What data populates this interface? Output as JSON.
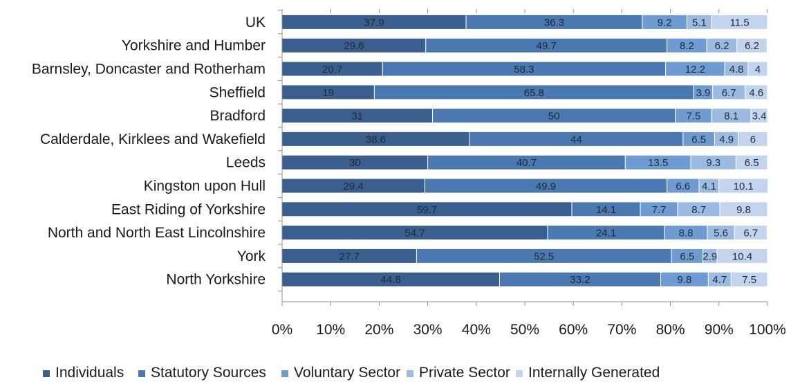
{
  "chart_data": {
    "type": "bar",
    "orientation": "horizontal",
    "stacked": true,
    "categories": [
      "UK",
      "Yorkshire and Humber",
      "Barnsley, Doncaster and Rotherham",
      "Sheffield",
      "Bradford",
      "Calderdale, Kirklees and Wakefield",
      "Leeds",
      "Kingston upon Hull",
      "East Riding of Yorkshire",
      "North and North East Lincolnshire",
      "York",
      "North Yorkshire"
    ],
    "series": [
      {
        "name": "Individuals",
        "color": "#3a5f8e",
        "values": [
          37.9,
          29.6,
          20.7,
          19,
          31,
          38.6,
          30,
          29.4,
          59.7,
          54.7,
          27.7,
          44.8
        ]
      },
      {
        "name": "Statutory Sources",
        "color": "#4a78b0",
        "values": [
          36.3,
          49.7,
          58.3,
          65.8,
          50,
          44,
          40.7,
          49.9,
          14.1,
          24.1,
          52.5,
          33.2
        ]
      },
      {
        "name": "Voluntary Sector",
        "color": "#6e9bd2",
        "values": [
          9.2,
          8.2,
          12.2,
          3.9,
          7.5,
          6.5,
          13.5,
          6.6,
          7.7,
          8.8,
          6.5,
          9.8
        ]
      },
      {
        "name": "Private Sector",
        "color": "#9bbbe2",
        "values": [
          5.1,
          6.2,
          4.8,
          6.7,
          8.1,
          4.9,
          9.3,
          4.1,
          8.7,
          5.6,
          2.9,
          4.7
        ]
      },
      {
        "name": "Internally Generated",
        "color": "#c2d4ee",
        "values": [
          11.5,
          6.2,
          4,
          4.6,
          3.4,
          6,
          6.5,
          10.1,
          9.8,
          6.7,
          10.4,
          7.5
        ]
      }
    ],
    "xlim": [
      0,
      100
    ],
    "x_ticks": [
      "0%",
      "10%",
      "20%",
      "30%",
      "40%",
      "50%",
      "60%",
      "70%",
      "80%",
      "90%",
      "100%"
    ],
    "grid": false,
    "legend_position": "bottom",
    "data_labels": true
  }
}
